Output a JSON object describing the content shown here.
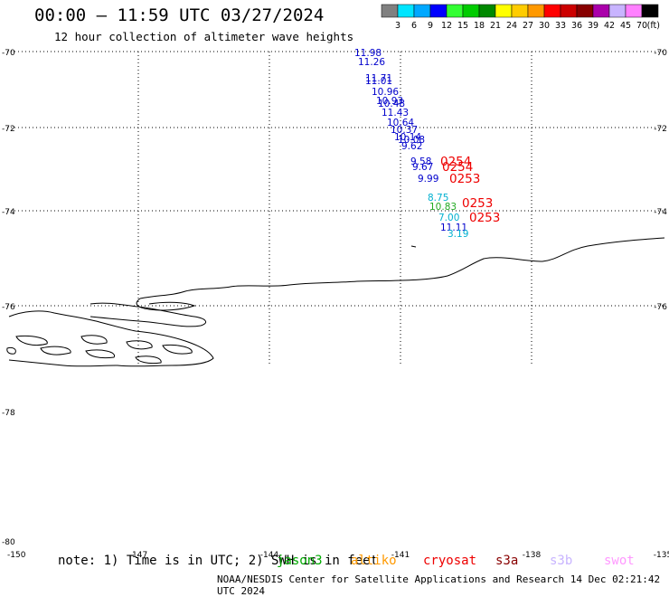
{
  "title": "00:00 – 11:59 UTC 03/27/2024",
  "subtitle": "12 hour collection of altimeter wave heights",
  "colorbar": {
    "unit": "(ft)",
    "ticks": [
      "3",
      "6",
      "9",
      "12",
      "15",
      "18",
      "21",
      "24",
      "27",
      "30",
      "33",
      "36",
      "39",
      "42",
      "45",
      "70"
    ],
    "colors": [
      "#808080",
      "#00e5ff",
      "#00a8ff",
      "#0000ff",
      "#33ff33",
      "#00cc00",
      "#008800",
      "#ffff00",
      "#ffcc00",
      "#ff9900",
      "#ff0000",
      "#cc0000",
      "#880000",
      "#aa00aa",
      "#c8b4ff",
      "#ff80ff",
      "#000000"
    ]
  },
  "axes": {
    "lat_labels": [
      "-70",
      "-72",
      "-74",
      "-76",
      "-78",
      "-80"
    ],
    "lon_labels": [
      "-150",
      "-147",
      "-144",
      "-141",
      "-138",
      "-135"
    ]
  },
  "observations": [
    {
      "value": "11.98",
      "color": "#0000cc"
    },
    {
      "value": "11.26",
      "color": "#0000cc"
    },
    {
      "value": "11.71",
      "color": "#0000cc"
    },
    {
      "value": "11.01",
      "color": "#0000cc"
    },
    {
      "value": "10.96",
      "color": "#0000cc"
    },
    {
      "value": "10.93",
      "color": "#0000cc"
    },
    {
      "value": "10.48",
      "color": "#0000cc"
    },
    {
      "value": "11.43",
      "color": "#0000cc"
    },
    {
      "value": "10.64",
      "color": "#0000cc"
    },
    {
      "value": "10.37",
      "color": "#0000cc"
    },
    {
      "value": "10.14",
      "color": "#0000cc"
    },
    {
      "value": "10.08",
      "color": "#0000cc"
    },
    {
      "value": "9.62",
      "color": "#0000cc"
    },
    {
      "value": "9.58",
      "color": "#0000cc"
    },
    {
      "value": "9.67",
      "color": "#0000cc"
    },
    {
      "value": "9.99",
      "color": "#0000cc"
    },
    {
      "value": "8.75",
      "color": "#00b0d0"
    },
    {
      "value": "10.83",
      "color": "#22aa22"
    },
    {
      "value": "7.00",
      "color": "#00b0d0"
    },
    {
      "value": "11.11",
      "color": "#0000cc"
    },
    {
      "value": "3.19",
      "color": "#00b0d0"
    }
  ],
  "pass_times": [
    {
      "value": "0254",
      "color": "#ee0000"
    },
    {
      "value": "0254",
      "color": "#ee0000"
    },
    {
      "value": "0253",
      "color": "#ee0000"
    },
    {
      "value": "0253",
      "color": "#ee0000"
    },
    {
      "value": "0253",
      "color": "#ee0000"
    }
  ],
  "note": "note: 1) Time is in UTC; 2) SWH is in feet",
  "legend": [
    {
      "name": "jason3",
      "color": "#00aa00"
    },
    {
      "name": "altiko",
      "color": "#ff9900"
    },
    {
      "name": "cryosat",
      "color": "#ee0000"
    },
    {
      "name": "s3a",
      "color": "#880000"
    },
    {
      "name": "s3b",
      "color": "#c8b4ff"
    },
    {
      "name": "swot",
      "color": "#ff99ff"
    }
  ],
  "footer": "NOAA/NESDIS Center for Satellite Applications and Research   14 Dec 02:21:42 UTC 2024"
}
